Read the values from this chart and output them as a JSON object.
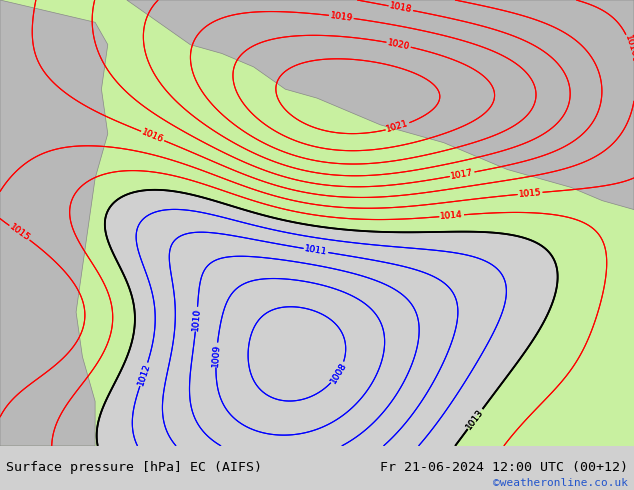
{
  "title_left": "Surface pressure [hPa] EC (AIFS)",
  "title_right": "Fr 21-06-2024 12:00 UTC (00+12)",
  "credit": "©weatheronline.co.uk",
  "bg_color": "#d0d0d0",
  "green_fill_color": "#c8f0a0",
  "fig_width": 6.34,
  "fig_height": 4.9,
  "dpi": 100,
  "bottom_bar_color": "#e8e8e8",
  "title_fontsize": 9.5,
  "credit_color": "#2255cc",
  "credit_fontsize": 8
}
